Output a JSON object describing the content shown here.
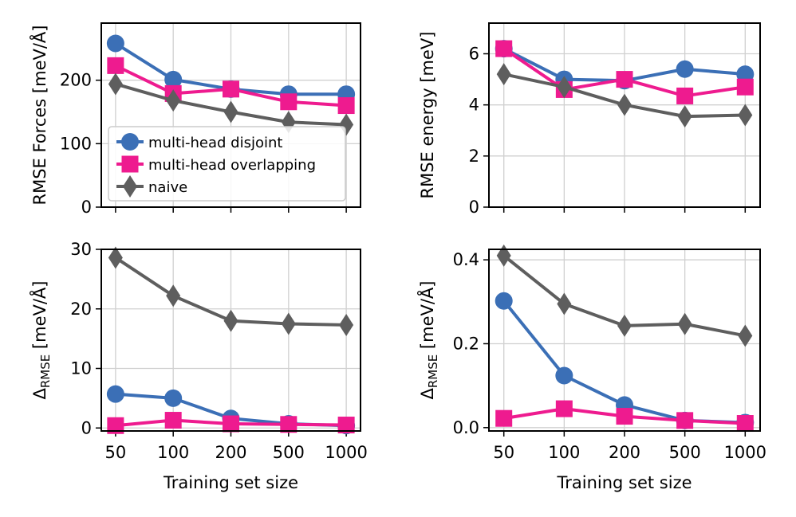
{
  "colors": {
    "multi_head_disjoint": "#3b6fb6",
    "multi_head_overlapping": "#ee1b8f",
    "naive": "#5e5e5e",
    "grid": "#d0d0d0"
  },
  "chart_data": [
    {
      "type": "line",
      "panel": "top-left",
      "categories": [
        "50",
        "100",
        "200",
        "500",
        "1000"
      ],
      "ylabel": "RMSE Forces [meV/Å]",
      "xlabel": "",
      "ylim": [
        0,
        290
      ],
      "yticks": [
        0,
        100,
        200
      ],
      "show_x_ticklabels": false,
      "legend": "lower-left",
      "series": [
        {
          "name": "multi-head disjoint",
          "key": "multi_head_disjoint",
          "marker": "circle",
          "values": [
            258,
            201,
            186,
            178,
            178
          ]
        },
        {
          "name": "multi-head overlapping",
          "key": "multi_head_overlapping",
          "marker": "square",
          "values": [
            223,
            179,
            186,
            166,
            160
          ]
        },
        {
          "name": "naive",
          "key": "naive",
          "marker": "diamond",
          "values": [
            194,
            168,
            150,
            134,
            130
          ]
        }
      ]
    },
    {
      "type": "line",
      "panel": "top-right",
      "categories": [
        "50",
        "100",
        "200",
        "500",
        "1000"
      ],
      "ylabel": "RMSE energy [meV]",
      "xlabel": "",
      "ylim": [
        0,
        7.2
      ],
      "yticks": [
        0,
        2,
        4,
        6
      ],
      "show_x_ticklabels": false,
      "series": [
        {
          "name": "multi-head disjoint",
          "key": "multi_head_disjoint",
          "marker": "circle",
          "values": [
            6.2,
            5.0,
            4.95,
            5.4,
            5.2
          ]
        },
        {
          "name": "multi-head overlapping",
          "key": "multi_head_overlapping",
          "marker": "square",
          "values": [
            6.2,
            4.6,
            5.0,
            4.35,
            4.7
          ]
        },
        {
          "name": "naive",
          "key": "naive",
          "marker": "diamond",
          "values": [
            5.2,
            4.7,
            4.0,
            3.55,
            3.6
          ]
        }
      ]
    },
    {
      "type": "line",
      "panel": "bottom-left",
      "categories": [
        "50",
        "100",
        "200",
        "500",
        "1000"
      ],
      "ylabel_main": "Δ",
      "ylabel_sub": "RMSE",
      "ylabel_rest": " [meV/Å]",
      "xlabel": "Training set size",
      "ylim": [
        -0.5,
        30
      ],
      "yticks": [
        0,
        10,
        20,
        30
      ],
      "show_x_ticklabels": true,
      "series": [
        {
          "name": "multi-head disjoint",
          "key": "multi_head_disjoint",
          "marker": "circle",
          "values": [
            5.7,
            5.0,
            1.6,
            0.7,
            0.4
          ]
        },
        {
          "name": "multi-head overlapping",
          "key": "multi_head_overlapping",
          "marker": "square",
          "values": [
            0.4,
            1.3,
            0.7,
            0.6,
            0.5
          ]
        },
        {
          "name": "naive",
          "key": "naive",
          "marker": "diamond",
          "values": [
            28.6,
            22.2,
            18.0,
            17.5,
            17.3
          ]
        }
      ]
    },
    {
      "type": "line",
      "panel": "bottom-right",
      "categories": [
        "50",
        "100",
        "200",
        "500",
        "1000"
      ],
      "ylabel_main": "Δ",
      "ylabel_sub": "RMSE",
      "ylabel_rest": " [meV/Å]",
      "xlabel": "Training set size",
      "ylim": [
        -0.008,
        0.425
      ],
      "yticks": [
        0.0,
        0.2,
        0.4
      ],
      "ytick_labels": [
        "0.0",
        "0.2",
        "0.4"
      ],
      "show_x_ticklabels": true,
      "series": [
        {
          "name": "multi-head disjoint",
          "key": "multi_head_disjoint",
          "marker": "circle",
          "values": [
            0.302,
            0.124,
            0.054,
            0.017,
            0.012
          ]
        },
        {
          "name": "multi-head overlapping",
          "key": "multi_head_overlapping",
          "marker": "square",
          "values": [
            0.022,
            0.045,
            0.027,
            0.017,
            0.01
          ]
        },
        {
          "name": "naive",
          "key": "naive",
          "marker": "diamond",
          "values": [
            0.41,
            0.295,
            0.243,
            0.247,
            0.219
          ]
        }
      ]
    }
  ]
}
